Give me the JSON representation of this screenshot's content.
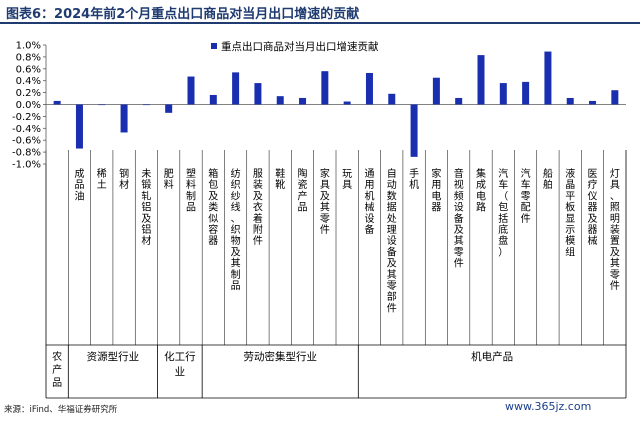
{
  "header": {
    "title": "图表6：2024年前2个月重点出口商品对当月出口增速的贡献"
  },
  "source": "来源：iFind、华福证券研究所",
  "watermark": "www.365jz.com",
  "colors": {
    "bar": "#1a2fb0",
    "axis": "#595959",
    "title": "#1f3b70"
  },
  "chart_data": {
    "type": "bar",
    "ylim": [
      -1.0,
      1.0
    ],
    "yticks": [
      "1.0%",
      "0.8%",
      "0.6%",
      "0.4%",
      "0.2%",
      "0.0%",
      "-0.2%",
      "-0.4%",
      "-0.6%",
      "-0.8%",
      "-1.0%"
    ],
    "grid": false,
    "legend": {
      "position": "top-center",
      "label": "重点出口商品对当月出口增速贡献"
    },
    "categories": [
      "农产品",
      "成品油",
      "稀土",
      "钢材",
      "未锻轧铝及铝材",
      "肥料",
      "塑料制品",
      "箱包及类似容器",
      "纺织纱线、织物及其制品",
      "服装及衣着附件",
      "鞋靴",
      "陶瓷产品",
      "家具及其零件",
      "玩具",
      "通用机械设备",
      "自动数据处理设备及其零部件",
      "手机",
      "家用电器",
      "音视频设备及其零件",
      "集成电路",
      "汽车（包括底盘）",
      "汽车零配件",
      "船舶",
      "液晶平板显示模组",
      "医疗仪器及器械",
      "灯具、照明装置及其零件"
    ],
    "values": [
      0.06,
      -0.74,
      -0.01,
      -0.47,
      0.0,
      -0.14,
      0.47,
      0.16,
      0.54,
      0.36,
      0.14,
      0.11,
      0.56,
      0.05,
      0.53,
      0.18,
      -0.88,
      0.45,
      0.11,
      0.83,
      0.36,
      0.38,
      0.89,
      0.11,
      0.06,
      0.24
    ],
    "groups": [
      {
        "label": "农产品",
        "count": 1
      },
      {
        "label": "资源型行业",
        "count": 4
      },
      {
        "label": "化工行业",
        "count": 2
      },
      {
        "label": "劳动密集型行业",
        "count": 7
      },
      {
        "label": "机电产品",
        "count": 12
      }
    ]
  }
}
